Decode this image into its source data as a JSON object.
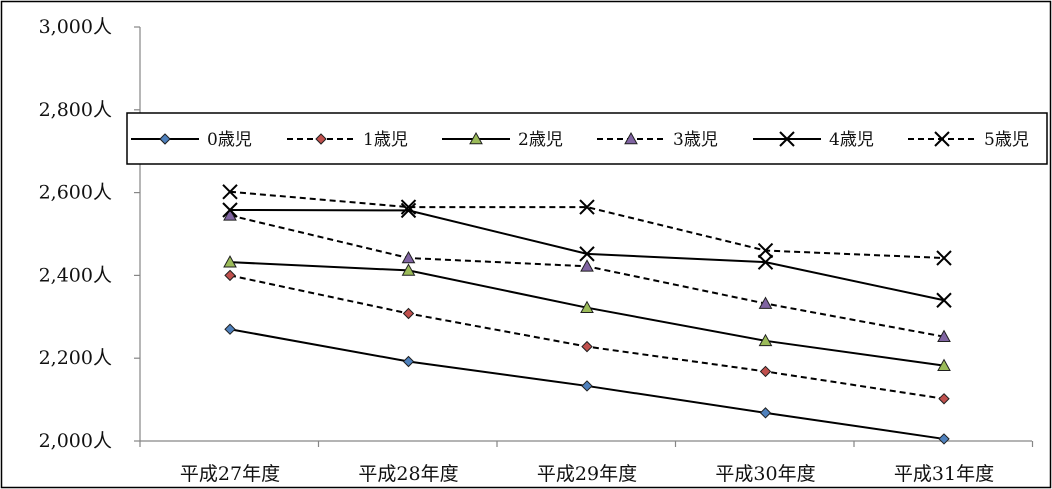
{
  "chart_data": {
    "type": "line",
    "categories": [
      "平成27年度",
      "平成28年度",
      "平成29年度",
      "平成30年度",
      "平成31年度"
    ],
    "ylim": [
      2000,
      3000
    ],
    "yticks": [
      2000,
      2200,
      2400,
      2600,
      2800,
      3000
    ],
    "y_tick_labels": [
      "2,000人",
      "2,200人",
      "2,400人",
      "2,600人",
      "2,800人",
      "3,000人"
    ],
    "grid": false,
    "legend_position": "top",
    "series": [
      {
        "name": "0歳児",
        "values": [
          2270,
          2192,
          2133,
          2068,
          2005
        ],
        "line": "solid",
        "marker": "diamond",
        "marker_color": "#4f81bd"
      },
      {
        "name": "1歳児",
        "values": [
          2400,
          2308,
          2228,
          2168,
          2102
        ],
        "line": "dashed",
        "marker": "diamond",
        "marker_color": "#c0504d"
      },
      {
        "name": "2歳児",
        "values": [
          2432,
          2412,
          2322,
          2242,
          2182
        ],
        "line": "solid",
        "marker": "triangle",
        "marker_color": "#9bbb59"
      },
      {
        "name": "3歳児",
        "values": [
          2545,
          2442,
          2422,
          2332,
          2252
        ],
        "line": "dashed",
        "marker": "triangle",
        "marker_color": "#8064a2"
      },
      {
        "name": "4歳児",
        "values": [
          2558,
          2557,
          2452,
          2432,
          2340
        ],
        "line": "solid",
        "marker": "x",
        "marker_color": "#000000"
      },
      {
        "name": "5歳児",
        "values": [
          2602,
          2565,
          2565,
          2460,
          2442
        ],
        "line": "dashed",
        "marker": "x",
        "marker_color": "#000000"
      }
    ]
  }
}
